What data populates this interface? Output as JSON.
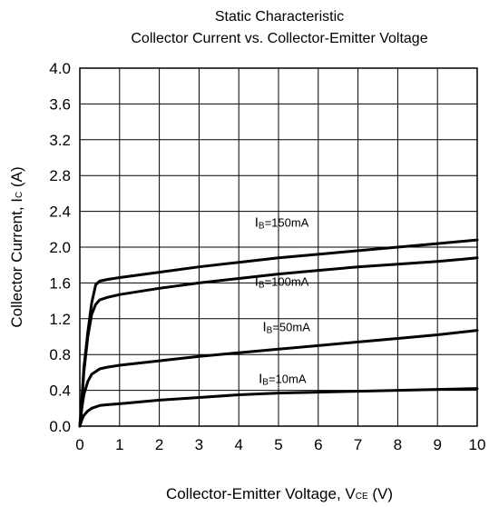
{
  "chart_data": {
    "type": "line",
    "title": "Static  Characteristic",
    "subtitle": "Collector Current vs. Collector-Emitter Voltage",
    "xlabel": {
      "text": "Collector-Emitter Voltage, V",
      "sub": "CE",
      "unit": " (V)"
    },
    "ylabel": {
      "text": "Collector Current, I",
      "sub": "C",
      "unit": " (A)"
    },
    "xlim": [
      0,
      10
    ],
    "ylim": [
      0,
      4.0
    ],
    "x_ticks": [
      0,
      1,
      2,
      3,
      4,
      5,
      6,
      7,
      8,
      9,
      10
    ],
    "y_ticks": [
      0.0,
      0.4,
      0.8,
      1.2,
      1.6,
      2.0,
      2.4,
      2.8,
      3.2,
      3.6,
      4.0
    ],
    "x_tick_labels": [
      "0",
      "1",
      "2",
      "3",
      "4",
      "5",
      "6",
      "7",
      "8",
      "9",
      "10"
    ],
    "y_tick_labels": [
      "0.0",
      "0.4",
      "0.8",
      "1.2",
      "1.6",
      "2.0",
      "2.4",
      "2.8",
      "3.2",
      "3.6",
      "4.0"
    ],
    "grid": true,
    "series": [
      {
        "name": "IB=150mA",
        "label_prefix": "I",
        "label_sub": "B",
        "label_suffix": "=150mA",
        "points": [
          [
            0,
            0
          ],
          [
            0.05,
            0.3
          ],
          [
            0.1,
            0.65
          ],
          [
            0.2,
            1.05
          ],
          [
            0.3,
            1.38
          ],
          [
            0.4,
            1.58
          ],
          [
            0.5,
            1.62
          ],
          [
            0.7,
            1.64
          ],
          [
            1,
            1.66
          ],
          [
            2,
            1.72
          ],
          [
            3,
            1.78
          ],
          [
            4,
            1.83
          ],
          [
            5,
            1.88
          ],
          [
            6,
            1.92
          ],
          [
            7,
            1.96
          ],
          [
            8,
            2.0
          ],
          [
            9,
            2.04
          ],
          [
            10,
            2.08
          ]
        ]
      },
      {
        "name": "IB=100mA",
        "label_prefix": "I",
        "label_sub": "B",
        "label_suffix": "=100mA",
        "points": [
          [
            0,
            0
          ],
          [
            0.05,
            0.25
          ],
          [
            0.1,
            0.6
          ],
          [
            0.2,
            1.0
          ],
          [
            0.3,
            1.25
          ],
          [
            0.4,
            1.36
          ],
          [
            0.5,
            1.41
          ],
          [
            0.7,
            1.44
          ],
          [
            1,
            1.47
          ],
          [
            2,
            1.54
          ],
          [
            3,
            1.6
          ],
          [
            4,
            1.65
          ],
          [
            5,
            1.7
          ],
          [
            6,
            1.74
          ],
          [
            7,
            1.78
          ],
          [
            8,
            1.81
          ],
          [
            9,
            1.84
          ],
          [
            10,
            1.88
          ]
        ]
      },
      {
        "name": "IB=50mA",
        "label_prefix": "I",
        "label_sub": "B",
        "label_suffix": "=50mA",
        "points": [
          [
            0,
            0
          ],
          [
            0.05,
            0.2
          ],
          [
            0.1,
            0.35
          ],
          [
            0.2,
            0.5
          ],
          [
            0.3,
            0.58
          ],
          [
            0.5,
            0.64
          ],
          [
            0.7,
            0.66
          ],
          [
            1,
            0.68
          ],
          [
            2,
            0.73
          ],
          [
            3,
            0.78
          ],
          [
            4,
            0.82
          ],
          [
            5,
            0.86
          ],
          [
            6,
            0.9
          ],
          [
            7,
            0.94
          ],
          [
            8,
            0.98
          ],
          [
            9,
            1.02
          ],
          [
            10,
            1.07
          ]
        ]
      },
      {
        "name": "IB=10mA",
        "label_prefix": "I",
        "label_sub": "B",
        "label_suffix": "=10mA",
        "points": [
          [
            0,
            0
          ],
          [
            0.05,
            0.07
          ],
          [
            0.1,
            0.12
          ],
          [
            0.2,
            0.17
          ],
          [
            0.3,
            0.2
          ],
          [
            0.5,
            0.23
          ],
          [
            0.7,
            0.24
          ],
          [
            1,
            0.25
          ],
          [
            2,
            0.29
          ],
          [
            3,
            0.32
          ],
          [
            4,
            0.35
          ],
          [
            5,
            0.37
          ],
          [
            6,
            0.38
          ],
          [
            7,
            0.39
          ],
          [
            8,
            0.4
          ],
          [
            9,
            0.41
          ],
          [
            10,
            0.42
          ]
        ]
      }
    ]
  }
}
